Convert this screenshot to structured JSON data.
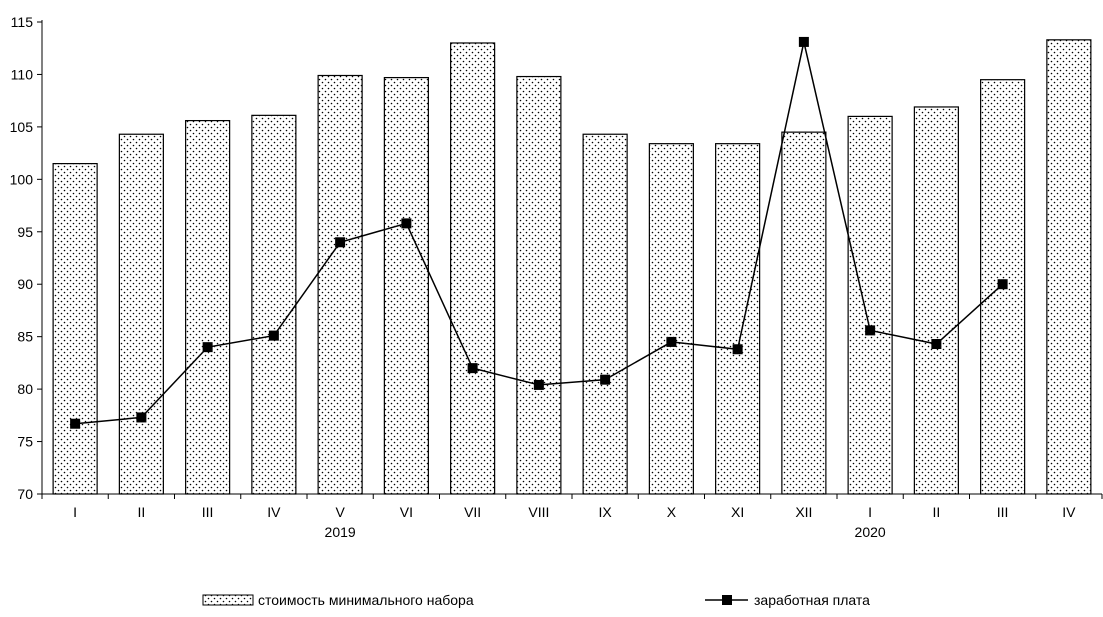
{
  "chart_data": {
    "type": "bar",
    "categories": [
      "I",
      "II",
      "III",
      "IV",
      "V",
      "VI",
      "VII",
      "VIII",
      "IX",
      "X",
      "XI",
      "XII",
      "I",
      "II",
      "III",
      "IV"
    ],
    "year_labels": [
      {
        "label": "2019",
        "index": 4
      },
      {
        "label": "2020",
        "index": 12
      }
    ],
    "ylim": [
      70,
      115
    ],
    "yticks": [
      70,
      75,
      80,
      85,
      90,
      95,
      100,
      105,
      110,
      115
    ],
    "series": [
      {
        "name": "стоимость минимального набора",
        "type": "bar",
        "values": [
          101.5,
          104.3,
          105.6,
          106.1,
          109.9,
          109.7,
          113.0,
          109.8,
          104.3,
          103.4,
          103.4,
          104.5,
          106.0,
          106.9,
          109.5,
          113.3
        ]
      },
      {
        "name": "заработная плата",
        "type": "line",
        "values": [
          76.7,
          77.3,
          84.0,
          85.1,
          94.0,
          95.8,
          82.0,
          80.4,
          80.9,
          84.5,
          83.8,
          113.1,
          85.6,
          84.3,
          90.0,
          null
        ]
      }
    ],
    "legend_position": "bottom",
    "grid": false
  }
}
